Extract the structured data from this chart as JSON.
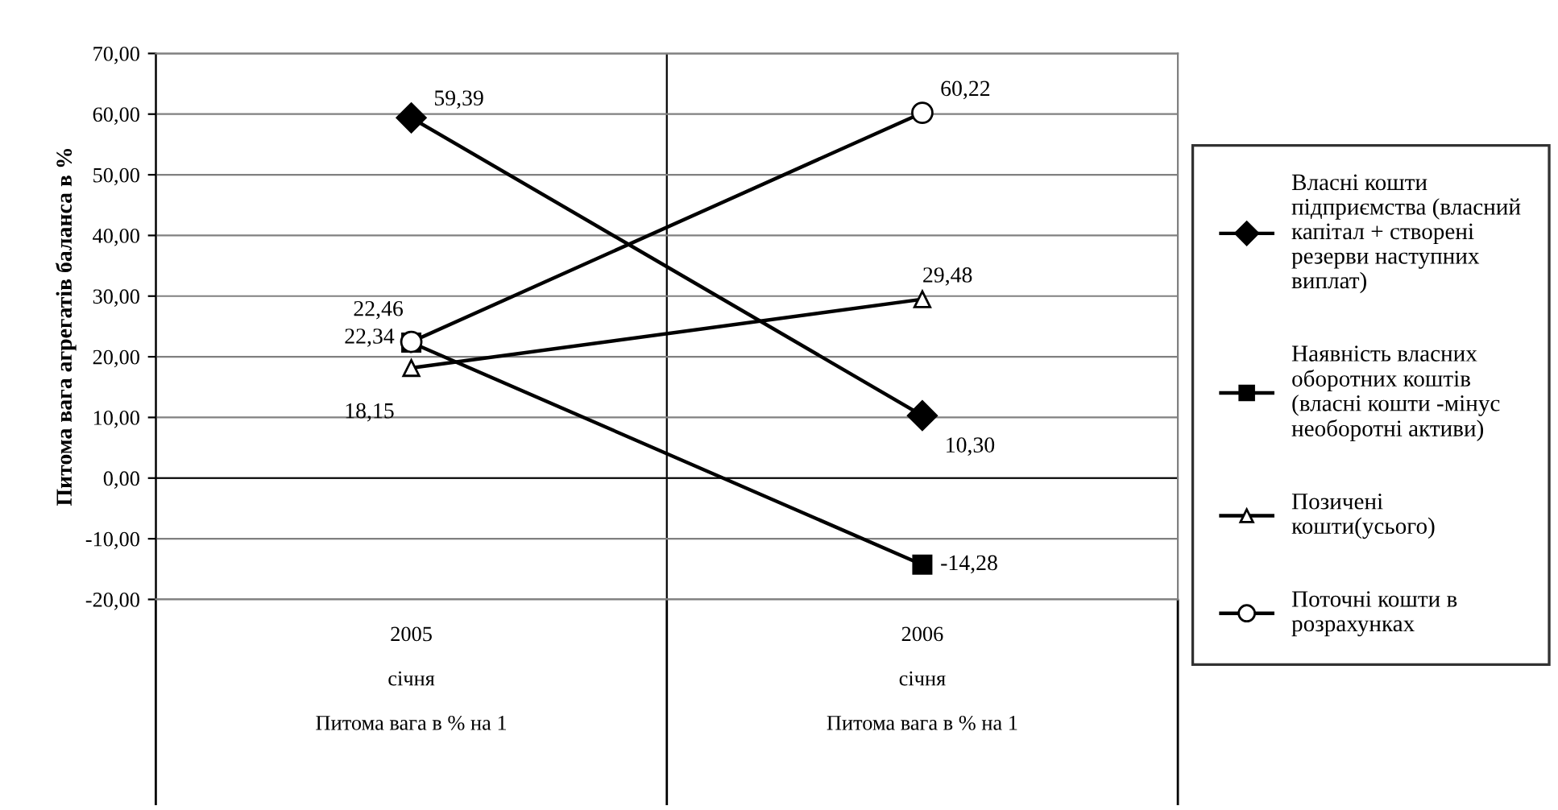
{
  "chart_data": {
    "type": "line",
    "categories": [
      "2005\n\nсічня\n\nПитома вага в % на 1",
      "2006\n\nсічня\n\nПитома вага в % на 1"
    ],
    "ylabel": "Питома вага агрегатів баланса в %",
    "ylim": [
      -20,
      70
    ],
    "yticks": [
      {
        "value": -20,
        "label": "-20,00"
      },
      {
        "value": -10,
        "label": "-10,00"
      },
      {
        "value": 0,
        "label": "0,00"
      },
      {
        "value": 10,
        "label": "10,00"
      },
      {
        "value": 20,
        "label": "20,00"
      },
      {
        "value": 30,
        "label": "30,00"
      },
      {
        "value": 40,
        "label": "40,00"
      },
      {
        "value": 50,
        "label": "50,00"
      },
      {
        "value": 60,
        "label": "60,00"
      },
      {
        "value": 70,
        "label": "70,00"
      }
    ],
    "grid": true,
    "legend": "right",
    "series": [
      {
        "name": "Власні кошти\nпідприємства (власний\nкапітал + створені\nрезерви наступних\nвиплат)",
        "color": "#000000",
        "marker": "diamond",
        "values": [
          59.39,
          10.3
        ],
        "value_labels": [
          "59,39",
          "10,30"
        ]
      },
      {
        "name": "Наявність власних\nоборотних коштів\n(власні кошти -мінус\nнеоборотні активи)",
        "color": "#000000",
        "marker": "square",
        "values": [
          22.34,
          -14.28
        ],
        "value_labels": [
          "22,34",
          "-14,28"
        ]
      },
      {
        "name": "Позичені\nкошти(усього)",
        "color": "#000000",
        "marker": "triangle",
        "values": [
          18.15,
          29.48
        ],
        "value_labels": [
          "18,15",
          "29,48"
        ]
      },
      {
        "name": "Поточні кошти в\nрозрахунках",
        "color": "#000000",
        "marker": "circle",
        "values": [
          22.46,
          60.22
        ],
        "value_labels": [
          "22,46",
          "60,22"
        ]
      }
    ]
  }
}
